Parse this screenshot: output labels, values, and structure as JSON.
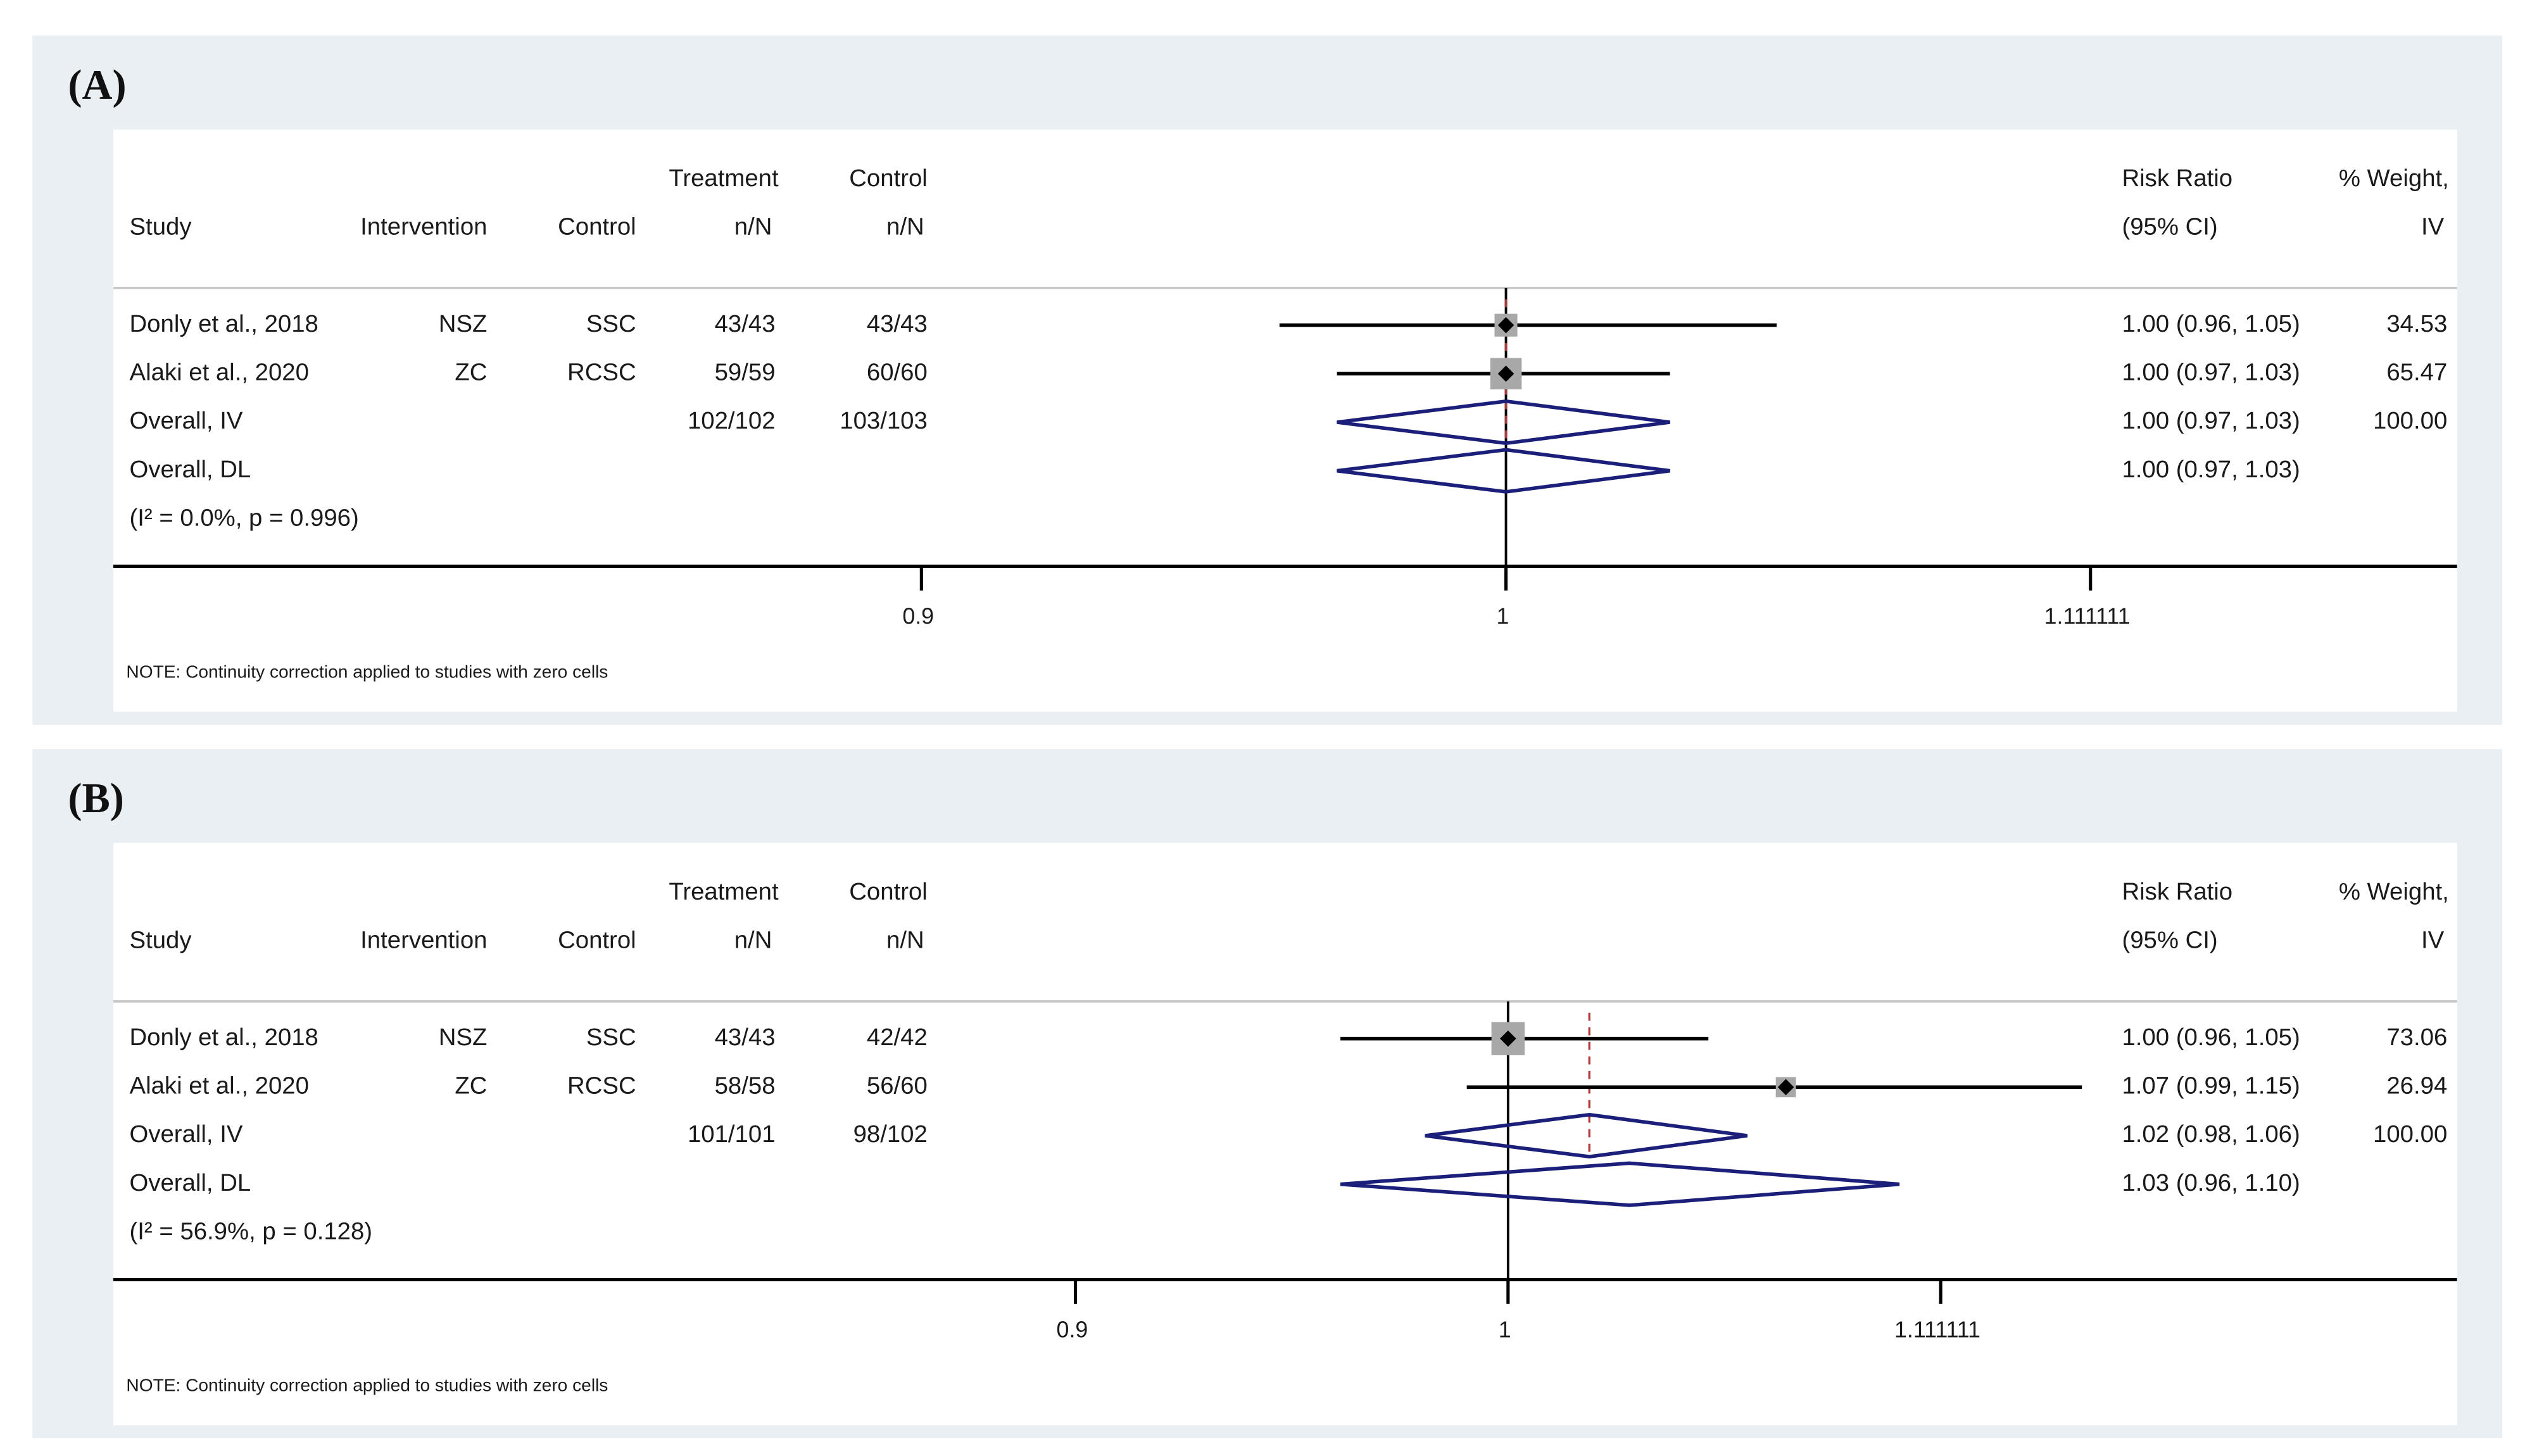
{
  "chart_data": [
    {
      "type": "forest",
      "panel_label": "(A)",
      "header_top": {
        "treatment": "Treatment",
        "control_n": "Control",
        "effect": "Risk Ratio",
        "weight": "% Weight,"
      },
      "header_bottom": {
        "study": "Study",
        "intervention": "Intervention",
        "control": "Control",
        "treatment": "n/N",
        "control_n": "n/N",
        "effect": "(95% CI)",
        "weight": "IV"
      },
      "studies": [
        {
          "study": "Donly et al., 2018",
          "intervention": "NSZ",
          "control": "SSC",
          "treatment_n": "43/43",
          "control_n": "43/43",
          "rr": 1.0,
          "lo": 0.96,
          "hi": 1.05,
          "effect_label": "1.00 (0.96, 1.05)",
          "weight": 34.53
        },
        {
          "study": "Alaki et al., 2020",
          "intervention": "ZC",
          "control": "RCSC",
          "treatment_n": "59/59",
          "control_n": "60/60",
          "rr": 1.0,
          "lo": 0.97,
          "hi": 1.03,
          "effect_label": "1.00 (0.97, 1.03)",
          "weight": 65.47
        }
      ],
      "overall": [
        {
          "study": "Overall, IV",
          "treatment_n": "102/102",
          "control_n": "103/103",
          "rr": 1.0,
          "lo": 0.97,
          "hi": 1.03,
          "effect_label": "1.00 (0.97, 1.03)",
          "weight": 100,
          "weight_label": "100.00"
        },
        {
          "study": "Overall, DL",
          "rr": 1.0,
          "lo": 0.97,
          "hi": 1.03,
          "effect_label": "1.00 (0.97, 1.03)"
        }
      ],
      "heterogeneity": "(I² = 0.0%, p = 0.996)",
      "note": "NOTE: Continuity correction applied to studies with zero cells",
      "xscale": "log",
      "xlim": [
        0.778,
        1.187
      ],
      "xticks": [
        0.9,
        1,
        1.111111
      ],
      "reference_line": 1,
      "marker_color": "#a8a8a8",
      "diamond_color": "#1b1f7a",
      "overall_line_color": "#b03a3a"
    },
    {
      "type": "forest",
      "panel_label": "(B)",
      "header_top": {
        "treatment": "Treatment",
        "control_n": "Control",
        "effect": "Risk Ratio",
        "weight": "% Weight,"
      },
      "header_bottom": {
        "study": "Study",
        "intervention": "Intervention",
        "control": "Control",
        "treatment": "n/N",
        "control_n": "n/N",
        "effect": "(95% CI)",
        "weight": "IV"
      },
      "studies": [
        {
          "study": "Donly et al., 2018",
          "intervention": "NSZ",
          "control": "SSC",
          "treatment_n": "43/43",
          "control_n": "42/42",
          "rr": 1.0,
          "lo": 0.96,
          "hi": 1.05,
          "effect_label": "1.00 (0.96, 1.05)",
          "weight": 73.06
        },
        {
          "study": "Alaki et al., 2020",
          "intervention": "ZC",
          "control": "RCSC",
          "treatment_n": "58/58",
          "control_n": "56/60",
          "rr": 1.07,
          "lo": 0.99,
          "hi": 1.15,
          "effect_label": "1.07 (0.99, 1.15)",
          "weight": 26.94
        }
      ],
      "overall": [
        {
          "study": "Overall, IV",
          "treatment_n": "101/101",
          "control_n": "98/102",
          "rr": 1.02,
          "lo": 0.98,
          "hi": 1.06,
          "effect_label": "1.02 (0.98, 1.06)",
          "weight": 100,
          "weight_label": "100.00"
        },
        {
          "study": "Overall, DL",
          "rr": 1.03,
          "lo": 0.96,
          "hi": 1.1,
          "effect_label": "1.03 (0.96, 1.10)"
        }
      ],
      "heterogeneity": "(I² = 56.9%, p = 0.128)",
      "note": "NOTE: Continuity correction applied to studies with zero cells",
      "xscale": "log",
      "xlim": [
        0.712,
        1.26
      ],
      "xticks": [
        0.9,
        1,
        1.111111
      ],
      "reference_line": 1,
      "marker_color": "#a8a8a8",
      "diamond_color": "#1b1f7a",
      "overall_line_color": "#b03a3a"
    }
  ]
}
